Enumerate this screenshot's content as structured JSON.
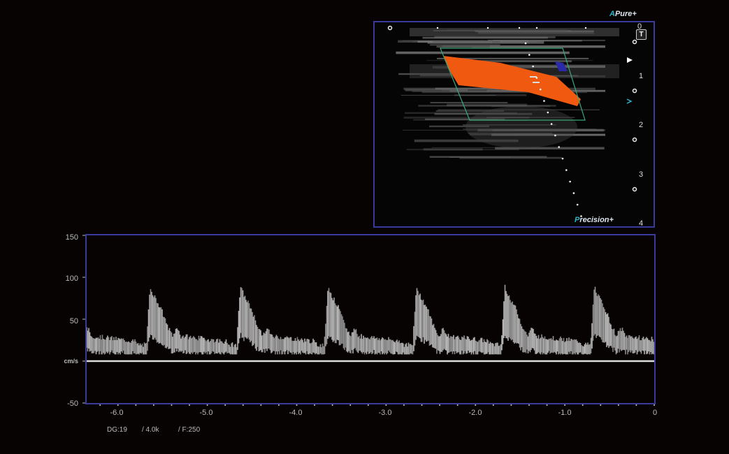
{
  "image_panel": {
    "brand_top_prefix": "A",
    "brand_top": "Pure+",
    "brand_bottom_prefix": "P",
    "brand_bottom": "recision+",
    "t_button": "T",
    "depth_labels": [
      "0",
      "1",
      "2",
      "3",
      "4"
    ],
    "colors": {
      "flow": "#f05a10",
      "reverse_flow": "#2a2aa8",
      "color_box": "#3aa87a",
      "frame": "#3a3a9a"
    }
  },
  "spectral": {
    "unit_label": "cm/s",
    "y_ticks": [
      "150",
      "100",
      "50",
      "-50"
    ],
    "x_ticks": [
      "-6.0",
      "-5.0",
      "-4.0",
      "-3.0",
      "-2.0",
      "-1.0",
      "0"
    ],
    "y_range": [
      -50,
      150
    ],
    "x_range_s": [
      -6.35,
      0
    ],
    "peak_velocity_cm_s": 90,
    "heart_cycle_s": 1.0
  },
  "status": {
    "dg": "DG:19",
    "prf": "/ 4.0k",
    "filter": "/ F:250"
  }
}
